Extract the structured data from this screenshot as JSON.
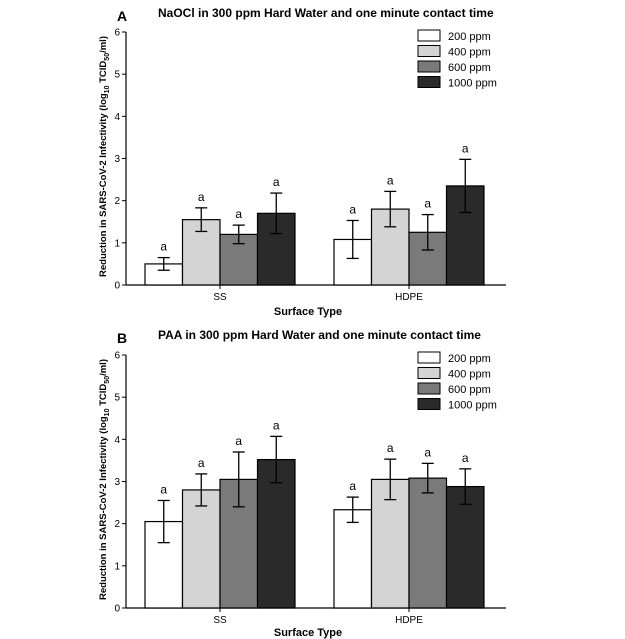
{
  "chart_data": [
    {
      "panel": "A",
      "type": "bar",
      "title": "NaOCl in 300 ppm Hard Water and one minute contact time",
      "xlabel": "Surface Type",
      "ylabel_parts": [
        "Reduction in SARS-CoV-2 Infectivity (log",
        "10",
        " TCID",
        "50",
        "/ml)"
      ],
      "ylim": [
        0,
        6
      ],
      "yticks": [
        "0",
        "1",
        "2",
        "3",
        "4",
        "5",
        "6"
      ],
      "categories": [
        "SS",
        "HDPE"
      ],
      "series": [
        {
          "name": "200 ppm",
          "color": "#ffffff",
          "values": [
            0.5,
            1.08
          ],
          "errors": [
            0.15,
            0.45
          ],
          "labels": [
            "a",
            "a"
          ]
        },
        {
          "name": "400 ppm",
          "color": "#d4d4d4",
          "values": [
            1.55,
            1.8
          ],
          "errors": [
            0.28,
            0.42
          ],
          "labels": [
            "a",
            "a"
          ]
        },
        {
          "name": "600 ppm",
          "color": "#7a7a7a",
          "values": [
            1.2,
            1.25
          ],
          "errors": [
            0.22,
            0.42
          ],
          "labels": [
            "a",
            "a"
          ]
        },
        {
          "name": "1000 ppm",
          "color": "#2a2a2a",
          "values": [
            1.7,
            2.35
          ],
          "errors": [
            0.48,
            0.63
          ],
          "labels": [
            "a",
            "a"
          ]
        }
      ],
      "legend_position": "top-right"
    },
    {
      "panel": "B",
      "type": "bar",
      "title": "PAA in 300 ppm Hard Water and one minute contact time",
      "xlabel": "Surface Type",
      "ylabel_parts": [
        "Reduction in SARS-CoV-2 Infectivity (log",
        "10",
        " TCID",
        "50",
        "/ml)"
      ],
      "ylim": [
        0,
        6
      ],
      "yticks": [
        "0",
        "1",
        "2",
        "3",
        "4",
        "5",
        "6"
      ],
      "categories": [
        "SS",
        "HDPE"
      ],
      "series": [
        {
          "name": "200 ppm",
          "color": "#ffffff",
          "values": [
            2.05,
            2.33
          ],
          "errors": [
            0.5,
            0.3
          ],
          "labels": [
            "a",
            "a"
          ]
        },
        {
          "name": "400 ppm",
          "color": "#d4d4d4",
          "values": [
            2.8,
            3.05
          ],
          "errors": [
            0.38,
            0.48
          ],
          "labels": [
            "a",
            "a"
          ]
        },
        {
          "name": "600 ppm",
          "color": "#7a7a7a",
          "values": [
            3.05,
            3.08
          ],
          "errors": [
            0.65,
            0.35
          ],
          "labels": [
            "a",
            "a"
          ]
        },
        {
          "name": "1000 ppm",
          "color": "#2a2a2a",
          "values": [
            3.52,
            2.88
          ],
          "errors": [
            0.55,
            0.42
          ],
          "labels": [
            "a",
            "a"
          ]
        }
      ],
      "legend_position": "top-right"
    }
  ]
}
